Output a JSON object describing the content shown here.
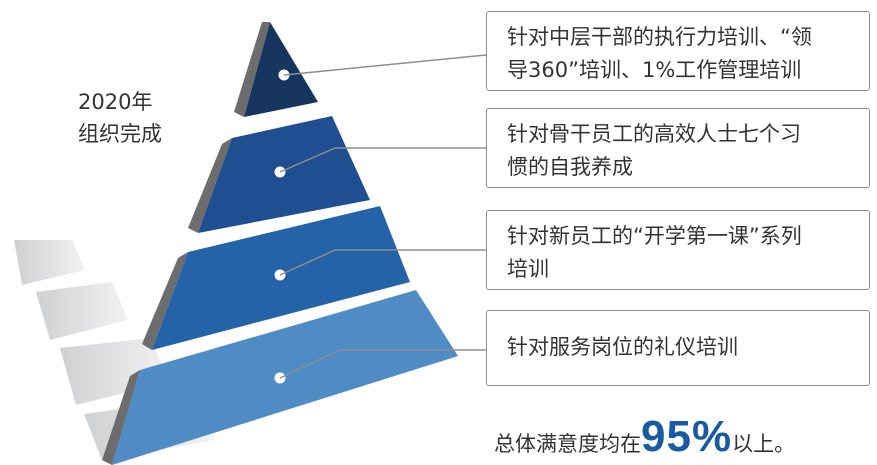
{
  "year_label": {
    "line1": "2020年",
    "line2": "组织完成"
  },
  "tiers": [
    {
      "text_line1": "针对中层干部的执行力培训、“领",
      "text_line2": "导360”培训、1%工作管理培训",
      "color": "#16365f"
    },
    {
      "text_line1": "针对骨干员工的高效人士七个习",
      "text_line2": "惯的自我养成",
      "color": "#1f4f91"
    },
    {
      "text_line1": "针对新员工的“开学第一课”系列",
      "text_line2": "培训",
      "color": "#2463a7"
    },
    {
      "text_line1": "针对服务岗位的礼仪培训",
      "text_line2": "",
      "color": "#4f8bc4"
    }
  ],
  "summary": {
    "prefix": "总体满意度均在",
    "value": "95%",
    "suffix": "以上。"
  },
  "colors": {
    "side": "#6d6d6d",
    "shadow": "#d9dadc",
    "connector": "#8f8f8f",
    "accent": "#1a5aa3"
  }
}
